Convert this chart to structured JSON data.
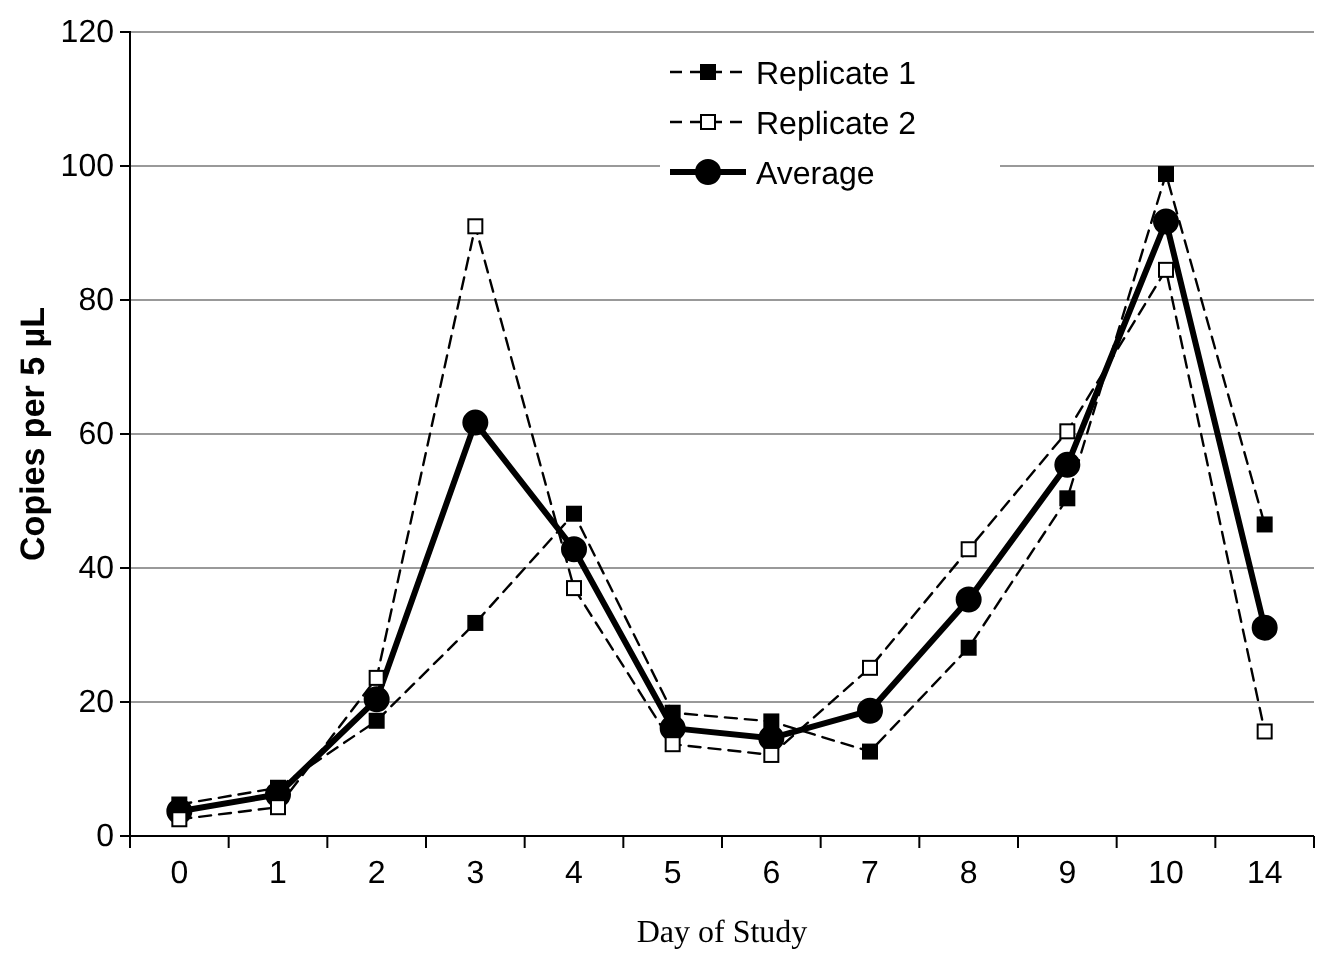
{
  "chart_data": {
    "type": "line",
    "xlabel": "Day of Study",
    "ylabel": "Copies per 5 µL",
    "categories": [
      "0",
      "1",
      "2",
      "3",
      "4",
      "5",
      "6",
      "7",
      "8",
      "9",
      "10",
      "14"
    ],
    "series": [
      {
        "name": "Replicate 1",
        "color": "#000000",
        "line_style": "dashed",
        "marker": "square",
        "values": [
          4.7,
          7.2,
          17.2,
          31.8,
          48.1,
          18.4,
          17.1,
          12.6,
          28.1,
          50.4,
          98.8,
          46.5
        ]
      },
      {
        "name": "Replicate 2",
        "color": "#000000",
        "line_style": "dashed",
        "marker": "square",
        "values": [
          2.5,
          4.3,
          23.6,
          91,
          37,
          13.7,
          12.1,
          25.1,
          42.8,
          60.4,
          84.5,
          15.6
        ]
      },
      {
        "name": "Average",
        "color": "#000000",
        "line_style": "solid",
        "marker": "circle",
        "values": [
          3.7,
          6.2,
          20.4,
          61.7,
          42.8,
          16.1,
          14.6,
          18.7,
          35.3,
          55.4,
          91.7,
          31.1
        ]
      }
    ],
    "ylim": [
      0,
      120
    ],
    "yticks": [
      0,
      20,
      40,
      60,
      80,
      100,
      120
    ],
    "grid": "y",
    "legend": "top right"
  }
}
